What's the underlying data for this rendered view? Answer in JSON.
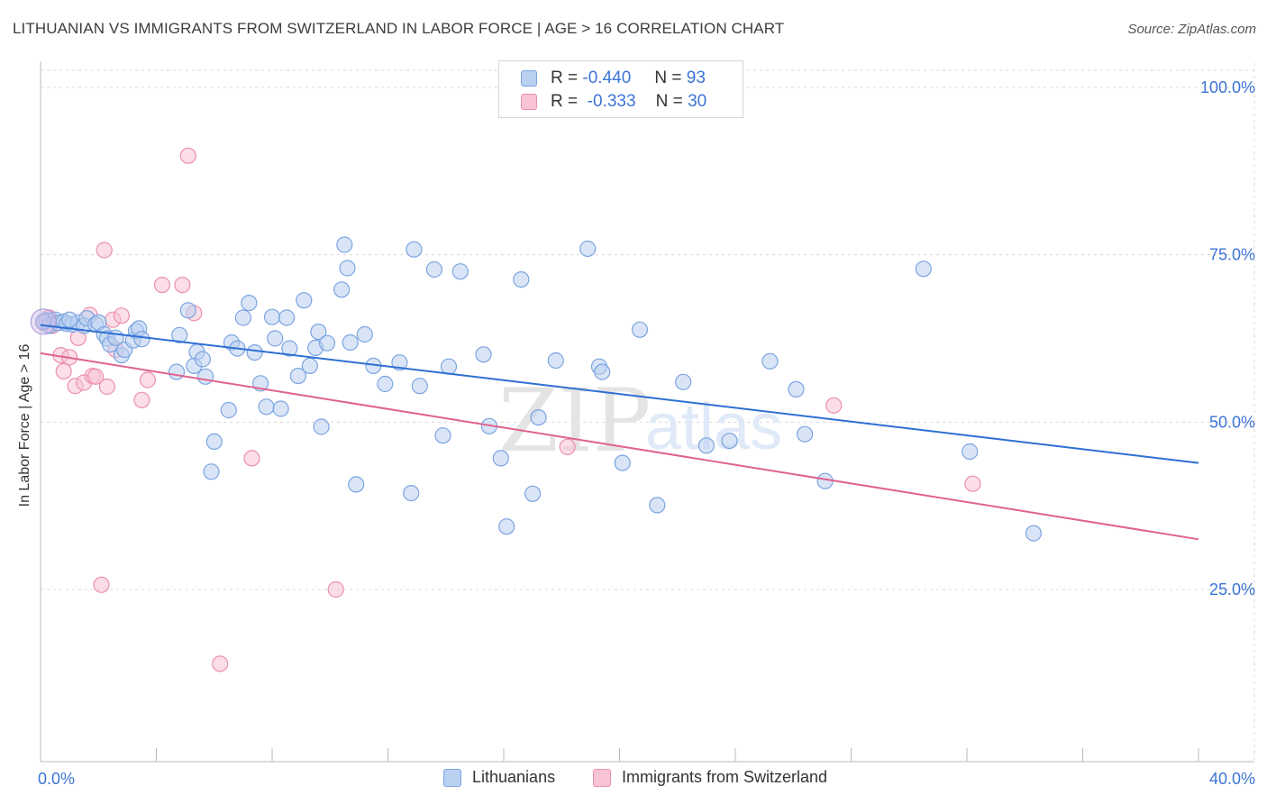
{
  "title": "LITHUANIAN VS IMMIGRANTS FROM SWITZERLAND IN LABOR FORCE | AGE > 16 CORRELATION CHART",
  "source": "Source: ZipAtlas.com",
  "watermark": {
    "zip": "ZIP",
    "atlas": "atlas"
  },
  "legend_stats": [
    {
      "r_label": "R =",
      "r_value": "-0.440",
      "n_label": "N =",
      "n_value": "93"
    },
    {
      "r_label": "R =",
      "r_value": "-0.333",
      "n_label": "N =",
      "n_value": "30"
    }
  ],
  "colors": {
    "blue_fill": "#b9d0f1",
    "blue_stroke": "#7ba4e0",
    "blue_line": "#2e6fd2",
    "pink_fill": "#f8c3d4",
    "pink_stroke": "#eb8fae",
    "pink_line": "#e0628e",
    "tick_label": "#3c74d6",
    "grid": "#d8d8d8"
  },
  "chart_data": {
    "type": "scatter",
    "title": "LITHUANIAN VS IMMIGRANTS FROM SWITZERLAND IN LABOR FORCE | AGE > 16 CORRELATION CHART",
    "xlabel": "",
    "ylabel": "In Labor Force | Age > 16",
    "xlim": [
      0,
      40
    ],
    "ylim": [
      0,
      105
    ],
    "x_tick_labels": [
      "0.0%",
      "40.0%"
    ],
    "x_tick_values": [
      0,
      40
    ],
    "y_tick_labels": [
      "25.0%",
      "50.0%",
      "75.0%",
      "100.0%"
    ],
    "y_tick_values": [
      25,
      50,
      75,
      100
    ],
    "grid": true,
    "legend_position": "bottom-center",
    "series": [
      {
        "name": "Lithuanians",
        "color": "#7ba4e0",
        "trend": {
          "x": [
            0,
            40
          ],
          "y": [
            64.5,
            43.9
          ]
        },
        "points": [
          [
            0.2,
            65.2
          ],
          [
            0.3,
            64.4
          ],
          [
            0.5,
            65.3
          ],
          [
            0.6,
            64.8
          ],
          [
            0.8,
            65.0
          ],
          [
            0.9,
            64.7
          ],
          [
            1.1,
            64.6
          ],
          [
            1.3,
            64.9
          ],
          [
            1.5,
            64.4
          ],
          [
            1.6,
            65.5
          ],
          [
            1.9,
            64.6
          ],
          [
            2.0,
            64.9
          ],
          [
            2.2,
            63.1
          ],
          [
            2.3,
            62.5
          ],
          [
            2.4,
            61.6
          ],
          [
            2.8,
            60.0
          ],
          [
            2.9,
            60.8
          ],
          [
            3.2,
            62.2
          ],
          [
            3.3,
            63.6
          ],
          [
            3.4,
            64.0
          ],
          [
            3.5,
            62.4
          ],
          [
            4.8,
            63.0
          ],
          [
            5.1,
            66.7
          ],
          [
            4.7,
            57.5
          ],
          [
            5.3,
            58.4
          ],
          [
            5.4,
            60.5
          ],
          [
            5.6,
            59.4
          ],
          [
            5.7,
            56.8
          ],
          [
            6.0,
            47.1
          ],
          [
            5.9,
            42.6
          ],
          [
            6.6,
            61.9
          ],
          [
            6.5,
            51.8
          ],
          [
            6.8,
            61.0
          ],
          [
            7.0,
            65.6
          ],
          [
            7.2,
            67.8
          ],
          [
            7.4,
            60.4
          ],
          [
            7.6,
            55.8
          ],
          [
            7.8,
            52.3
          ],
          [
            8.0,
            65.7
          ],
          [
            8.1,
            62.5
          ],
          [
            8.3,
            52.0
          ],
          [
            8.5,
            65.6
          ],
          [
            8.6,
            61.0
          ],
          [
            8.9,
            56.9
          ],
          [
            9.1,
            68.2
          ],
          [
            9.3,
            58.4
          ],
          [
            9.5,
            61.1
          ],
          [
            9.6,
            63.5
          ],
          [
            9.9,
            61.8
          ],
          [
            9.7,
            49.3
          ],
          [
            10.4,
            69.8
          ],
          [
            10.5,
            76.5
          ],
          [
            10.6,
            73.0
          ],
          [
            10.7,
            61.9
          ],
          [
            10.9,
            40.7
          ],
          [
            11.2,
            63.1
          ],
          [
            11.5,
            58.4
          ],
          [
            11.9,
            55.7
          ],
          [
            12.4,
            58.9
          ],
          [
            12.8,
            39.4
          ],
          [
            12.9,
            75.8
          ],
          [
            13.1,
            55.4
          ],
          [
            13.6,
            72.8
          ],
          [
            13.9,
            48.0
          ],
          [
            14.1,
            58.3
          ],
          [
            14.5,
            72.5
          ],
          [
            15.3,
            60.1
          ],
          [
            15.5,
            49.4
          ],
          [
            15.9,
            44.6
          ],
          [
            16.1,
            34.4
          ],
          [
            16.6,
            71.3
          ],
          [
            17.0,
            39.3
          ],
          [
            17.2,
            50.7
          ],
          [
            17.8,
            59.2
          ],
          [
            18.9,
            75.9
          ],
          [
            19.3,
            58.3
          ],
          [
            19.4,
            57.5
          ],
          [
            20.1,
            43.9
          ],
          [
            20.7,
            63.8
          ],
          [
            21.3,
            37.6
          ],
          [
            22.2,
            56.0
          ],
          [
            23.0,
            46.5
          ],
          [
            23.8,
            47.2
          ],
          [
            25.2,
            59.1
          ],
          [
            26.1,
            54.9
          ],
          [
            26.4,
            48.2
          ],
          [
            27.1,
            41.2
          ],
          [
            30.5,
            72.9
          ],
          [
            32.1,
            45.6
          ],
          [
            34.3,
            33.4
          ],
          [
            0.1,
            65.0
          ],
          [
            1.0,
            65.3
          ],
          [
            2.6,
            62.6
          ]
        ]
      },
      {
        "name": "Immigrants from Switzerland",
        "color": "#eb8fae",
        "trend": {
          "x": [
            0,
            40
          ],
          "y": [
            60.3,
            32.5
          ]
        },
        "points": [
          [
            0.1,
            64.9
          ],
          [
            0.4,
            64.4
          ],
          [
            0.7,
            60.0
          ],
          [
            0.8,
            57.6
          ],
          [
            1.0,
            59.7
          ],
          [
            1.2,
            55.4
          ],
          [
            1.3,
            62.6
          ],
          [
            1.5,
            55.9
          ],
          [
            1.7,
            66.0
          ],
          [
            1.8,
            56.9
          ],
          [
            1.9,
            56.8
          ],
          [
            2.1,
            25.7
          ],
          [
            2.2,
            75.7
          ],
          [
            2.3,
            55.3
          ],
          [
            2.5,
            65.3
          ],
          [
            2.6,
            60.8
          ],
          [
            2.8,
            65.9
          ],
          [
            3.5,
            53.3
          ],
          [
            3.7,
            56.3
          ],
          [
            4.2,
            70.5
          ],
          [
            4.9,
            70.5
          ],
          [
            5.1,
            89.8
          ],
          [
            5.3,
            66.3
          ],
          [
            6.2,
            13.9
          ],
          [
            7.3,
            44.6
          ],
          [
            10.2,
            25.0
          ],
          [
            18.2,
            46.3
          ],
          [
            27.4,
            52.5
          ],
          [
            32.2,
            40.8
          ],
          [
            0.3,
            65.6
          ]
        ]
      }
    ]
  }
}
